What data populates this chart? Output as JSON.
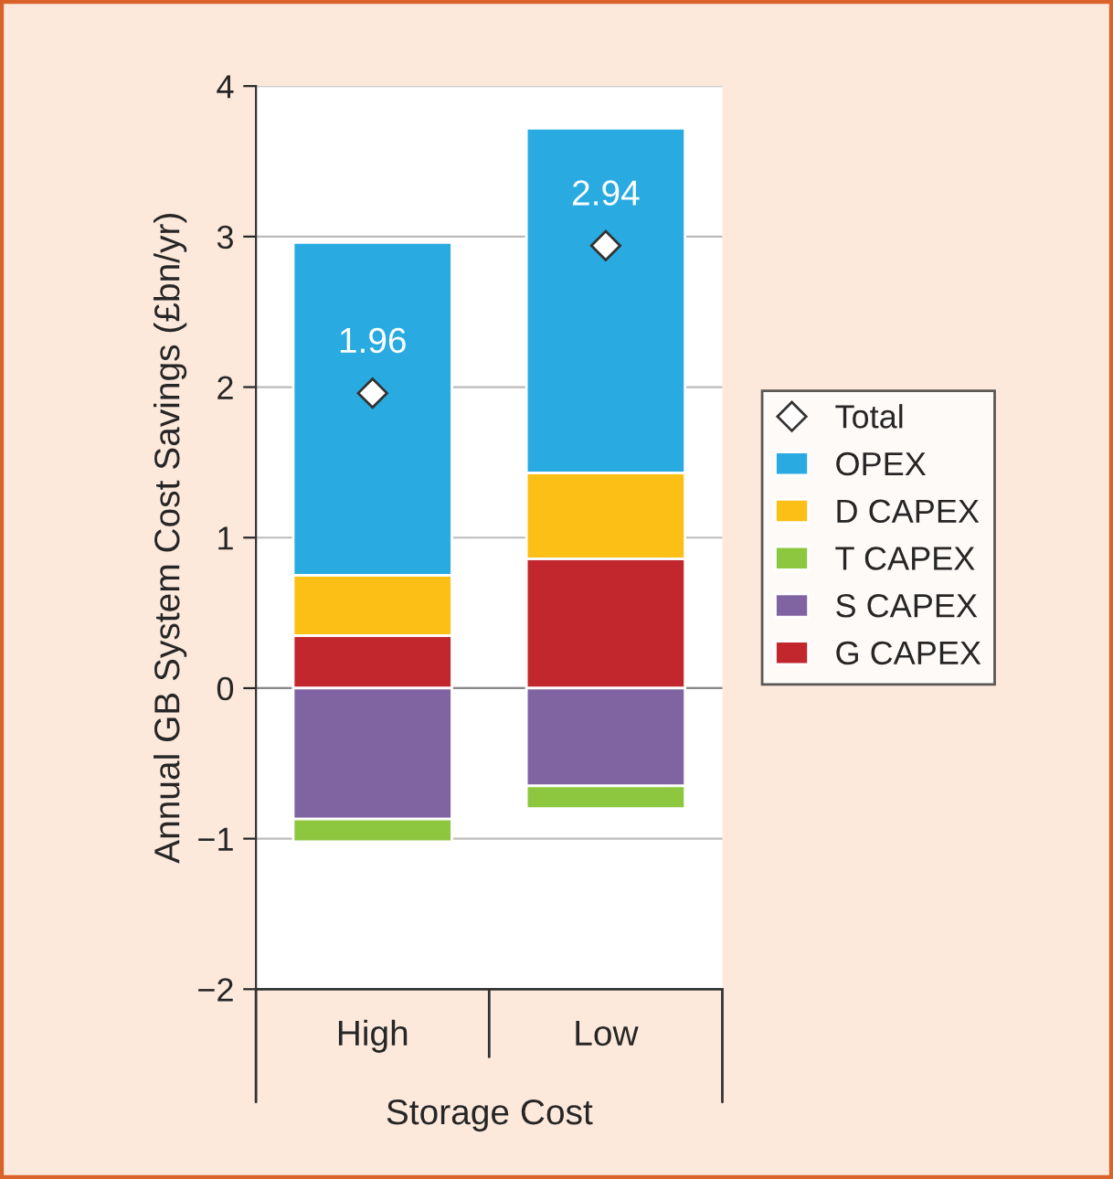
{
  "chart_data": {
    "type": "bar",
    "stacked": true,
    "categories": [
      "High",
      "Low"
    ],
    "xlabel": "Storage Cost",
    "ylabel": "Annual GB System Cost Savings (£bn/yr)",
    "ylim": [
      -2,
      4
    ],
    "yticks": [
      {
        "value": -2,
        "label": "−2"
      },
      {
        "value": -1,
        "label": "−1"
      },
      0,
      1,
      2,
      3,
      4
    ],
    "grid": "y",
    "legend": "right",
    "series": [
      {
        "name": "G CAPEX",
        "color": "#c1272d",
        "values": [
          0.35,
          0.86
        ]
      },
      {
        "name": "S CAPEX",
        "color": "#8064a2",
        "values": [
          -0.87,
          -0.65
        ]
      },
      {
        "name": "T CAPEX",
        "color": "#8dc63f",
        "values": [
          -0.15,
          -0.15
        ]
      },
      {
        "name": "D CAPEX",
        "color": "#fbbf15",
        "values": [
          0.4,
          0.57
        ]
      },
      {
        "name": "OPEX",
        "color": "#29abe2",
        "values": [
          2.21,
          2.29
        ]
      },
      {
        "name": "Total",
        "type": "scatter",
        "marker": "diamond",
        "color": "#ffffff",
        "x": [
          "High",
          "Low"
        ],
        "values": [
          1.96,
          2.94
        ],
        "value_labels": [
          "1.96",
          "2.94"
        ]
      }
    ]
  }
}
